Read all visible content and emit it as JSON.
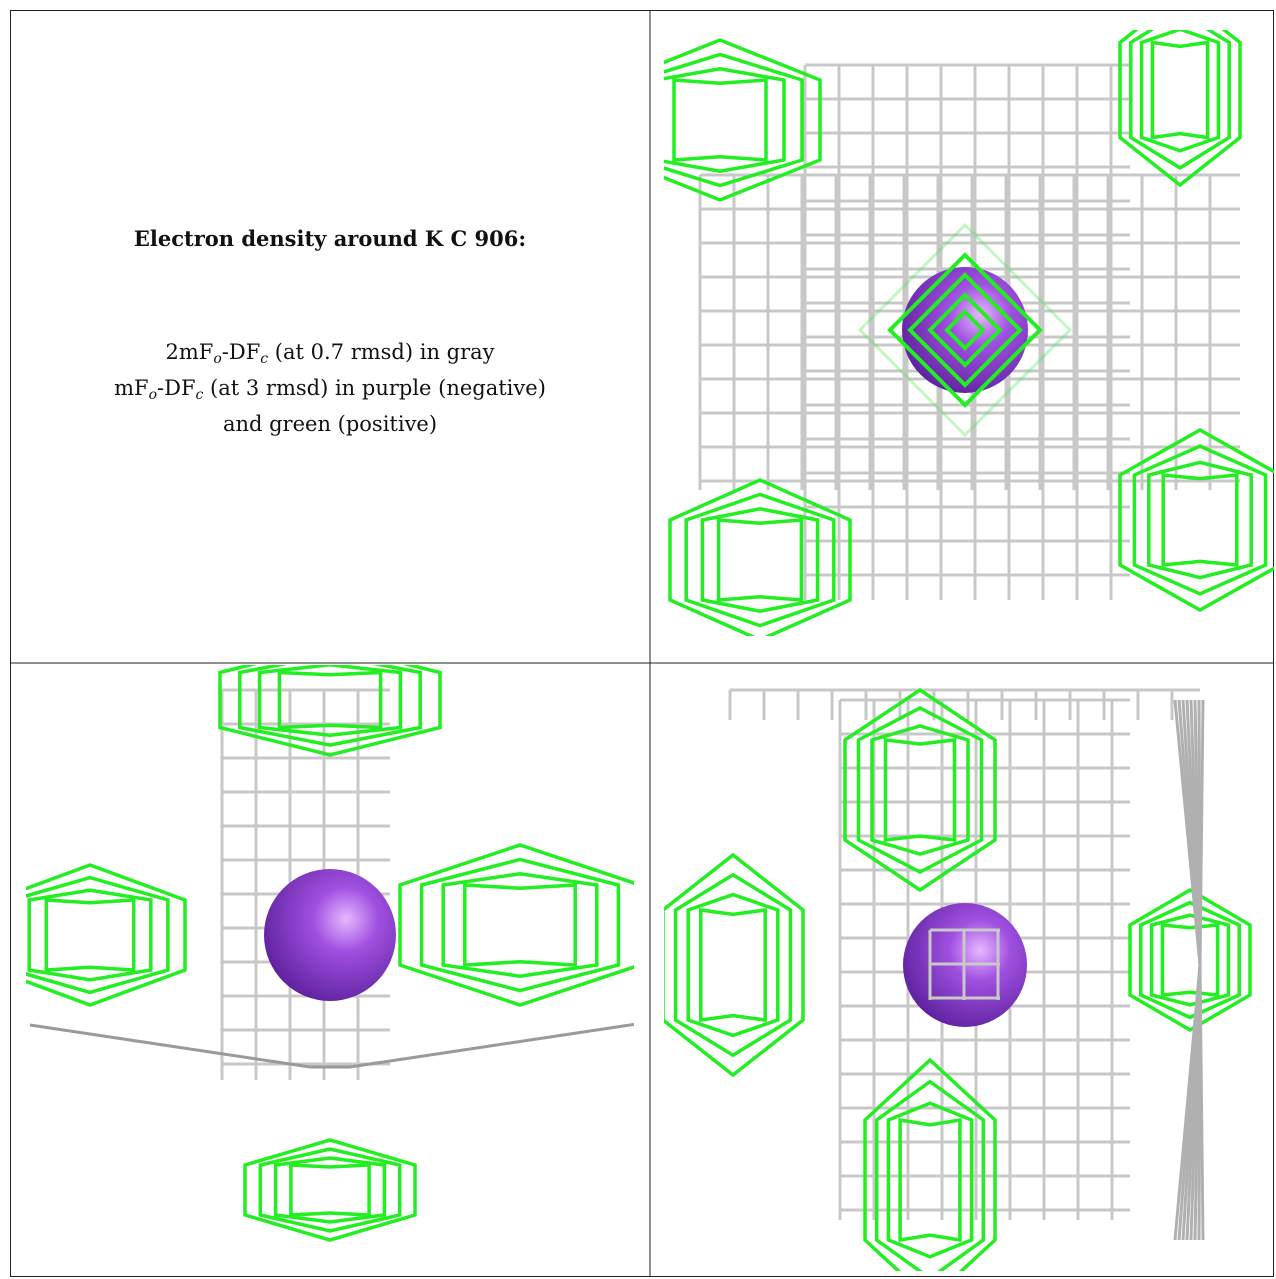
{
  "figure": {
    "title": "Electron density around K C 906:",
    "caption_lines": [
      [
        "2mF",
        "o",
        "-DF",
        "c",
        " (at 0.7 rmsd) in gray"
      ],
      [
        "mF",
        "o",
        "-DF",
        "c",
        " (at 3 rmsd) in purple (negative)"
      ],
      [
        "and green (positive)"
      ]
    ]
  }
}
